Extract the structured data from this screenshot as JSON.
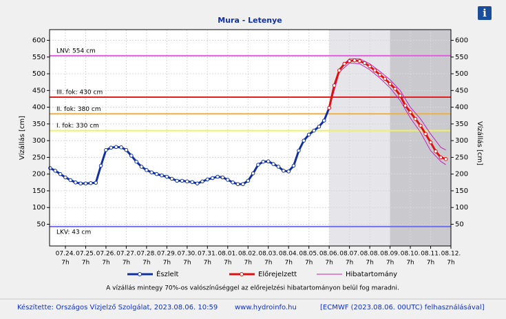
{
  "chart_data": {
    "type": "line",
    "title": "Mura - Letenye",
    "y_label": "Vízállás [cm]",
    "xlim": [
      -0.78,
      19
    ],
    "ylim": [
      -15,
      632
    ],
    "y2lim": [
      -15,
      632
    ],
    "xticks": [
      {
        "value": 0,
        "label": "07.24."
      },
      {
        "value": 1,
        "label": "07.25."
      },
      {
        "value": 2,
        "label": "07.26."
      },
      {
        "value": 3,
        "label": "07.27."
      },
      {
        "value": 4,
        "label": "07.28."
      },
      {
        "value": 5,
        "label": "07.29."
      },
      {
        "value": 6,
        "label": "07.30."
      },
      {
        "value": 7,
        "label": "07.31."
      },
      {
        "value": 8,
        "label": "08.01."
      },
      {
        "value": 9,
        "label": "08.02."
      },
      {
        "value": 10,
        "label": "08.03."
      },
      {
        "value": 11,
        "label": "08.04."
      },
      {
        "value": 12,
        "label": "08.05."
      },
      {
        "value": 13,
        "label": "08.06."
      },
      {
        "value": 14,
        "label": "08.07."
      },
      {
        "value": 15,
        "label": "08.08."
      },
      {
        "value": 16,
        "label": "08.09."
      },
      {
        "value": 17,
        "label": "08.10."
      },
      {
        "value": 18,
        "label": "08.11."
      },
      {
        "value": 19,
        "label": "08.12."
      }
    ],
    "xtick_time": "7h",
    "yticks": [
      50,
      100,
      150,
      200,
      250,
      300,
      350,
      400,
      450,
      500,
      550,
      600
    ],
    "y2ticks": [
      50,
      100,
      150,
      200,
      250,
      300,
      350,
      400,
      450,
      500,
      550,
      600
    ],
    "grid": true,
    "shading": [
      {
        "from": 13,
        "to": 16,
        "color": "#e6e6ea"
      },
      {
        "from": 16,
        "to": 19,
        "color": "#cacace"
      }
    ],
    "thresholds": [
      {
        "label": "LNV: 554 cm",
        "value": 554,
        "color": "#e060e0"
      },
      {
        "label": "III. fok: 430 cm",
        "value": 430,
        "color": "#e02020"
      },
      {
        "label": "II. fok: 380 cm",
        "value": 380,
        "color": "#f0b040"
      },
      {
        "label": "I. fok: 330 cm",
        "value": 330,
        "color": "#f0f060"
      },
      {
        "label": "LKV: 43 cm",
        "value": 43,
        "color": "#7070f0"
      }
    ],
    "series": [
      {
        "name": "Észlelt",
        "color": "#1030a0",
        "x": [
          -0.75,
          -0.5,
          -0.25,
          0,
          0.25,
          0.5,
          0.75,
          1,
          1.25,
          1.5,
          1.75,
          2,
          2.25,
          2.5,
          2.75,
          3,
          3.25,
          3.5,
          3.75,
          4,
          4.25,
          4.5,
          4.75,
          5,
          5.25,
          5.5,
          5.75,
          6,
          6.25,
          6.5,
          6.75,
          7,
          7.25,
          7.5,
          7.75,
          8,
          8.25,
          8.5,
          8.75,
          9,
          9.25,
          9.5,
          9.75,
          10,
          10.25,
          10.5,
          10.75,
          11,
          11.25,
          11.5,
          11.75,
          12,
          12.25,
          12.5,
          12.75,
          13
        ],
        "values": [
          218,
          210,
          200,
          190,
          182,
          175,
          172,
          172,
          173,
          174,
          225,
          272,
          279,
          281,
          280,
          272,
          255,
          237,
          222,
          212,
          205,
          200,
          196,
          192,
          186,
          180,
          180,
          178,
          176,
          172,
          178,
          184,
          188,
          192,
          190,
          183,
          175,
          170,
          170,
          180,
          202,
          228,
          237,
          238,
          230,
          222,
          210,
          208,
          225,
          270,
          300,
          318,
          330,
          342,
          360,
          398
        ]
      },
      {
        "name": "Előrejelzett",
        "color": "#e01010",
        "x": [
          13,
          13.25,
          13.5,
          13.75,
          14,
          14.25,
          14.5,
          14.75,
          15,
          15.25,
          15.5,
          15.75,
          16,
          16.25,
          16.5,
          16.75,
          17,
          17.25,
          17.5,
          17.75,
          18,
          18.25,
          18.5,
          18.75
        ],
        "values": [
          398,
          465,
          510,
          530,
          538,
          540,
          538,
          532,
          522,
          510,
          497,
          485,
          470,
          455,
          435,
          405,
          385,
          365,
          345,
          320,
          295,
          268,
          250,
          245
        ]
      }
    ],
    "band": {
      "name": "Hibatartomány",
      "color": "#c020c0",
      "x": [
        13,
        13.5,
        14,
        14.5,
        15,
        15.5,
        16,
        16.5,
        17,
        17.5,
        18,
        18.5,
        18.75
      ],
      "upper": [
        400,
        515,
        545,
        545,
        530,
        507,
        482,
        450,
        400,
        365,
        320,
        280,
        272
      ],
      "lower": [
        396,
        505,
        532,
        530,
        512,
        487,
        458,
        420,
        368,
        325,
        270,
        238,
        228
      ]
    },
    "note": "A vízállás mintegy 70%-os valószínűséggel az előrejelzési hibatartományon belül fog maradni.",
    "footer_left": "Készítette: Országos Vízjelző Szolgálat, 2023.08.06. 10:59",
    "footer_center": "www.hydroinfo.hu",
    "footer_right": "[ECMWF (2023.08.06. 00UTC) felhasználásával]",
    "info_icon": "i"
  }
}
